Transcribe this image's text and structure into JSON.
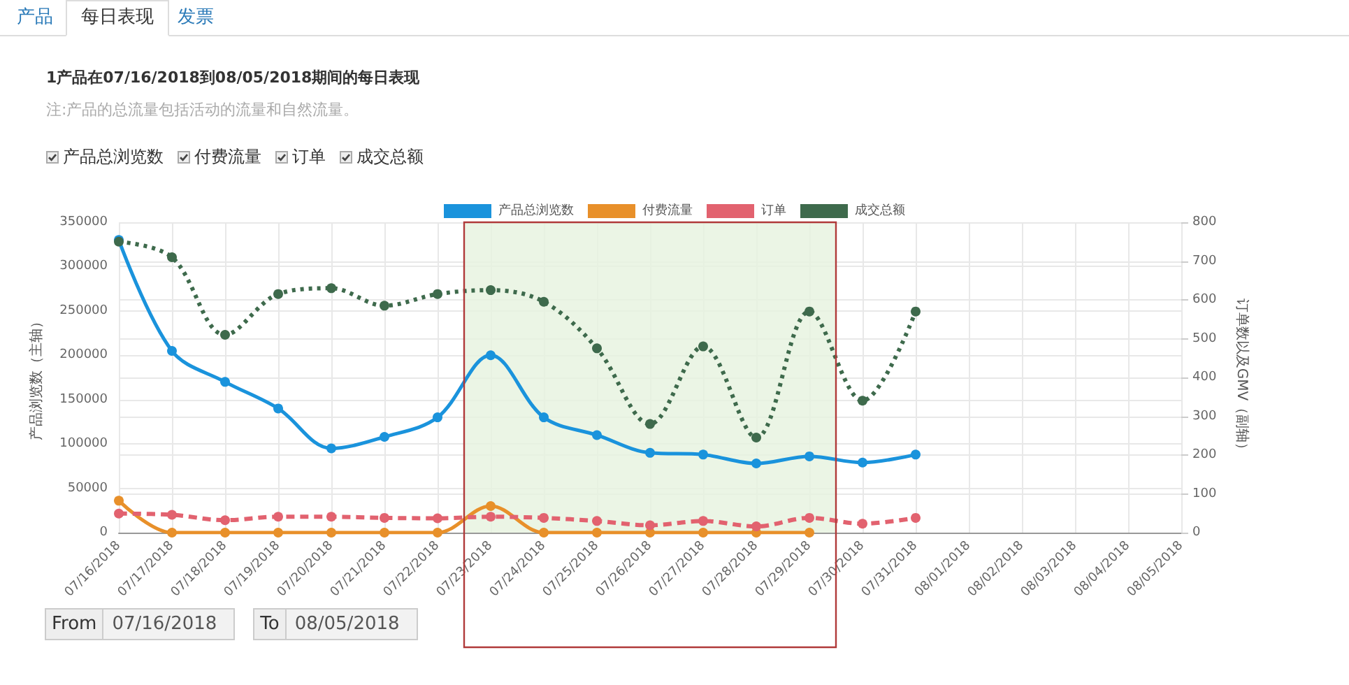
{
  "chart_data": {
    "type": "line",
    "title": "1产品在07/16/2018到08/05/2018期间的每日表现",
    "subtitle": "注:产品的总流量包括活动的流量和自然流量。",
    "ylabel": "产品浏览数（主轴）",
    "y2label": "订单数以及GMV（副轴）",
    "categories": [
      "07/16/2018",
      "07/17/2018",
      "07/18/2018",
      "07/19/2018",
      "07/20/2018",
      "07/21/2018",
      "07/22/2018",
      "07/23/2018",
      "07/24/2018",
      "07/25/2018",
      "07/26/2018",
      "07/27/2018",
      "07/28/2018",
      "07/29/2018",
      "07/30/2018",
      "07/31/2018",
      "08/01/2018",
      "08/02/2018",
      "08/03/2018",
      "08/04/2018",
      "08/05/2018"
    ],
    "series": [
      {
        "name": "产品总浏览数",
        "color": "#1a93dc",
        "line_style": "solid",
        "values": [
          330000,
          205000,
          170000,
          140000,
          95000,
          108000,
          130000,
          200000,
          130000,
          110000,
          90000,
          88000,
          78000,
          86000,
          79000,
          88000,
          null,
          null,
          null,
          null,
          null
        ]
      },
      {
        "name": "付费流量",
        "color": "#e8902a",
        "line_style": "solid",
        "values": [
          36000,
          0,
          0,
          0,
          0,
          0,
          0,
          30000,
          0,
          0,
          0,
          0,
          0,
          0,
          null,
          null,
          null,
          null,
          null,
          null,
          null
        ]
      },
      {
        "name": "订单",
        "color": "#e2626f",
        "line_style": "dashed",
        "axis": "y2",
        "values": [
          49,
          46,
          32,
          41,
          41,
          38,
          37,
          41,
          38,
          30,
          19,
          30,
          16,
          38,
          23,
          38,
          null,
          null,
          null,
          null,
          null
        ]
      },
      {
        "name": "成交总额",
        "color": "#3e6a4c",
        "line_style": "dotted",
        "axis": "y2",
        "values": [
          750,
          710,
          510,
          615,
          630,
          585,
          615,
          625,
          595,
          475,
          280,
          480,
          245,
          570,
          340,
          570,
          null,
          null,
          null,
          null,
          null
        ]
      }
    ],
    "ylim": [
      0,
      350000
    ],
    "yticks": [
      0,
      50000,
      100000,
      150000,
      200000,
      250000,
      300000,
      350000
    ],
    "y2lim": [
      0,
      800
    ],
    "y2ticks": [
      0,
      100,
      200,
      300,
      400,
      500,
      600,
      700,
      800
    ],
    "grid": true,
    "legend": "top",
    "marker": "circle",
    "bands": [
      {
        "axis": "x",
        "from": "07/23/2018",
        "to": "07/29/2018",
        "color": "#e6f3df"
      }
    ],
    "annotations": [
      "产品",
      "每日表现",
      "发票",
      "From",
      "07/16/2018",
      "To",
      "08/05/2018"
    ]
  }
}
